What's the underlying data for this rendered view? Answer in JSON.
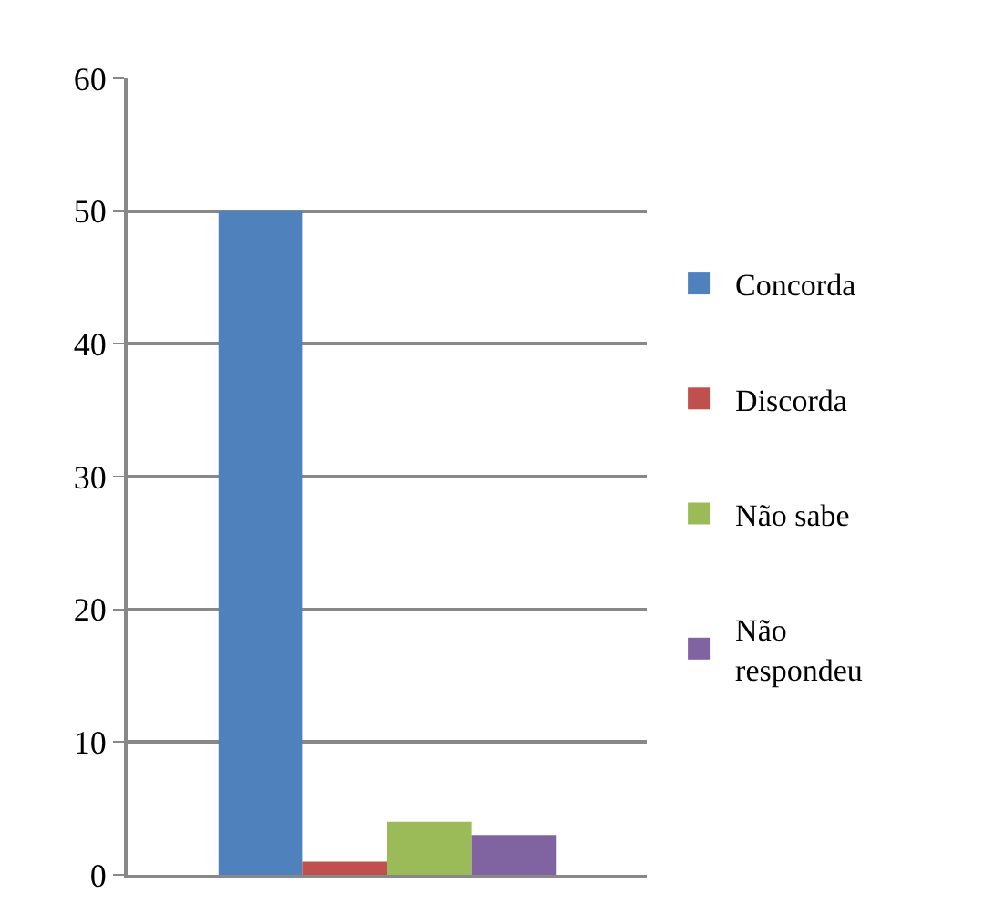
{
  "chart_data": {
    "type": "bar",
    "categories": [
      null
    ],
    "series": [
      {
        "name": "Concorda",
        "color": "#4f81bd",
        "values": [
          50
        ]
      },
      {
        "name": "Discorda",
        "color": "#c0504d",
        "values": [
          1
        ]
      },
      {
        "name": "Não sabe",
        "color": "#9bbb59",
        "values": [
          4
        ]
      },
      {
        "name": "Não respondeu",
        "color": "#8064a2",
        "values": [
          3
        ]
      }
    ],
    "ylim": [
      0,
      60
    ],
    "yticks": [
      0,
      10,
      20,
      30,
      40,
      50,
      60
    ],
    "grid": "y",
    "legend": "right"
  }
}
